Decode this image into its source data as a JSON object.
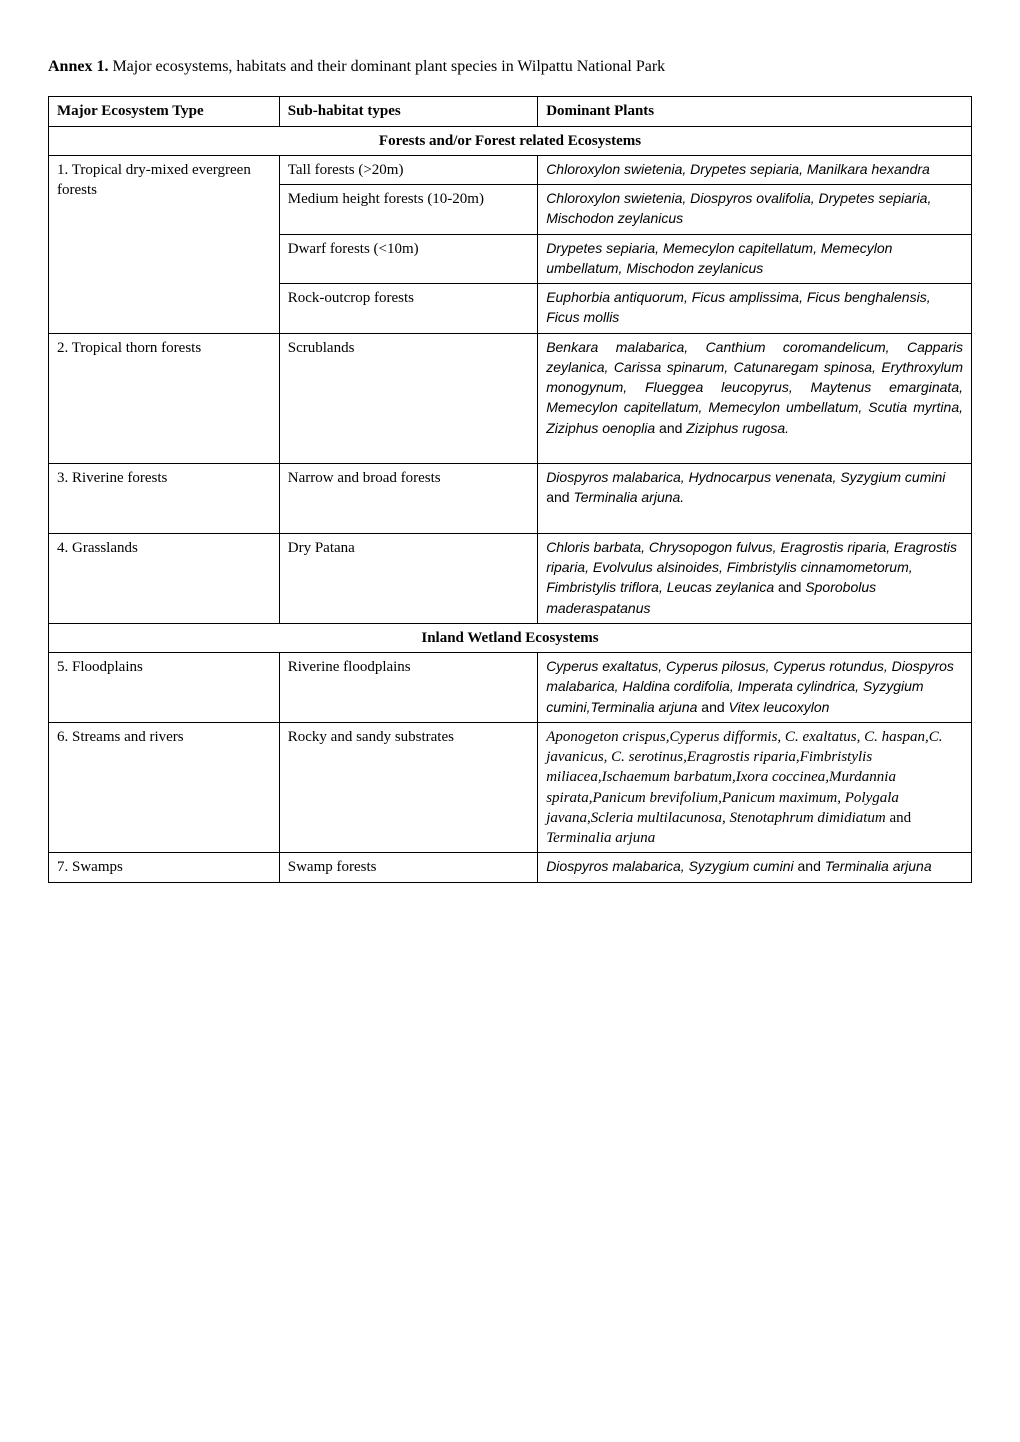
{
  "caption_bold": "Annex 1.",
  "caption_rest": " Major ecosystems, habitats and their dominant plant species in Wilpattu National Park",
  "headers": {
    "c1": "Major Ecosystem Type",
    "c2": "Sub-habitat types",
    "c3": "Dominant Plants"
  },
  "section1": "Forests and/or Forest related Ecosystems",
  "section2": "Inland Wetland Ecosystems",
  "row1": {
    "eco": "1. Tropical dry-mixed evergreen forests",
    "sub_a": "Tall forests (>20m)",
    "dom_a": "Chloroxylon swietenia, Drypetes sepiaria, Manilkara hexandra",
    "sub_b": "Medium height forests (10-20m)",
    "dom_b": "Chloroxylon swietenia, Diospyros ovalifolia, Drypetes sepiaria, Mischodon zeylanicus",
    "sub_c": "Dwarf forests (<10m)",
    "dom_c": "Drypetes sepiaria, Memecylon capitellatum, Memecylon umbellatum, Mischodon zeylanicus",
    "sub_d": "Rock-outcrop forests",
    "dom_d": "Euphorbia antiquorum, Ficus amplissima, Ficus benghalensis, Ficus mollis"
  },
  "row2": {
    "eco": "2. Tropical thorn forests",
    "sub": "Scrublands",
    "dom_pre": "Benkara malabarica, Canthium coromandelicum, Capparis zeylanica, Carissa spinarum, Catunaregam spinosa, Erythroxylum monogynum, Flueggea leucopyrus, Maytenus emarginata, Memecylon capitellatum, Memecylon umbellatum, Scutia myrtina, Ziziphus oenoplia",
    "dom_and": " and ",
    "dom_post": "Ziziphus rugosa."
  },
  "row3": {
    "eco": "3. Riverine forests",
    "sub": "Narrow and broad forests",
    "dom_a": "Diospyros malabarica, Hydnocarpus venenata, Syzygium cumini",
    "dom_mid": " and ",
    "dom_b": " Terminalia arjuna."
  },
  "row4": {
    "eco": "4.  Grasslands",
    "sub": "Dry Patana",
    "dom_a": "Chloris barbata, Chrysopogon fulvus, Eragrostis riparia, Eragrostis riparia, Evolvulus alsinoides, Fimbristylis cinnamometorum, Fimbristylis triflora, Leucas zeylanica",
    "dom_mid": " and ",
    "dom_b": "Sporobolus maderaspatanus"
  },
  "row5": {
    "eco": "5. Floodplains",
    "sub": "Riverine floodplains",
    "dom_a": "Cyperus exaltatus, Cyperus pilosus, Cyperus rotundus, Diospyros malabarica, Haldina cordifolia, Imperata cylindrica, Syzygium cumini,Terminalia arjuna",
    "dom_mid": " and ",
    "dom_b": "Vitex leucoxylon"
  },
  "row6": {
    "eco": "6. Streams and rivers",
    "sub": "Rocky and sandy substrates",
    "dom_a": "Aponogeton crispus,Cyperus difformis, C. exaltatus, C. haspan,C. javanicus, C. serotinus,Eragrostis riparia,Fimbristylis miliacea,Ischaemum barbatum,Ixora coccinea,Murdannia spirata,Panicum brevifolium,Panicum maximum, Polygala javana,Scleria multilacunosa, Stenotaphrum dimidiatum",
    "dom_mid": " and ",
    "dom_b": "Terminalia arjuna"
  },
  "row7": {
    "eco": "7. Swamps",
    "sub": "Swamp forests",
    "dom_a": "Diospyros malabarica, Syzygium cumini",
    "dom_mid": " and ",
    "dom_b": "Terminalia arjuna"
  }
}
